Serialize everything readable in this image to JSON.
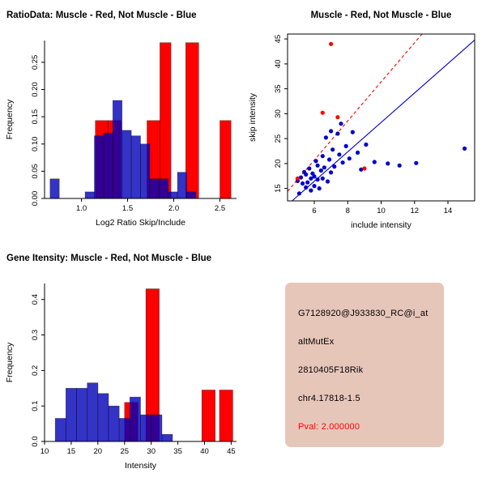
{
  "figure": {
    "bg_color": "#FFFFFF"
  },
  "chart_data": [
    {
      "type": "bar",
      "subtype": "overlaid-histogram",
      "title": "RatioData: Muscle - Red, Not Muscle - Blue",
      "xlabel": "Log2 Ratio Skip/Include",
      "ylabel": "Frequency",
      "xlim": [
        0.6,
        2.68
      ],
      "ylim": [
        0,
        0.29
      ],
      "xticks": [
        1.0,
        1.5,
        2.0,
        2.5
      ],
      "xtick_labels": [
        "1.0",
        "1.5",
        "2.0",
        "2.5"
      ],
      "yticks": [
        0,
        0.05,
        0.1,
        0.15,
        0.2,
        0.25
      ],
      "ytick_labels": [
        "0.00",
        "0.05",
        "0.10",
        "0.15",
        "0.20",
        "0.25"
      ],
      "grid": false,
      "legend": "colors explained in title",
      "series": [
        {
          "name": "Muscle",
          "color": "#FF0000",
          "opacity": 1,
          "bars": [
            [
              1.15,
              1.29,
              0.143
            ],
            [
              1.29,
              1.43,
              0.143
            ],
            [
              1.71,
              1.85,
              0.143
            ],
            [
              1.85,
              1.97,
              0.286
            ],
            [
              2.13,
              2.27,
              0.286
            ],
            [
              2.5,
              2.62,
              0.143
            ]
          ]
        },
        {
          "name": "Not Muscle",
          "color": "#0000B8",
          "opacity": 0.8,
          "bars": [
            [
              0.66,
              0.76,
              0.036
            ],
            [
              1.04,
              1.14,
              0.012
            ],
            [
              1.14,
              1.24,
              0.115
            ],
            [
              1.24,
              1.34,
              0.12
            ],
            [
              1.34,
              1.44,
              0.18
            ],
            [
              1.44,
              1.54,
              0.125
            ],
            [
              1.54,
              1.64,
              0.115
            ],
            [
              1.64,
              1.74,
              0.1
            ],
            [
              1.74,
              1.84,
              0.036
            ],
            [
              1.84,
              1.94,
              0.036
            ],
            [
              1.94,
              2.04,
              0.012
            ],
            [
              2.04,
              2.14,
              0.048
            ],
            [
              2.14,
              2.24,
              0.012
            ]
          ]
        }
      ]
    },
    {
      "type": "scatter",
      "title": "Muscle - Red, Not Muscle - Blue",
      "xlabel": "include intensity",
      "ylabel": "skip intensity",
      "xlim": [
        4.4,
        15.6
      ],
      "ylim": [
        12.5,
        46
      ],
      "xticks": [
        6,
        8,
        10,
        12,
        14
      ],
      "xtick_labels": [
        "6",
        "8",
        "10",
        "12",
        "14"
      ],
      "yticks": [
        15,
        20,
        25,
        30,
        35,
        40,
        45
      ],
      "ytick_labels": [
        "15",
        "20",
        "25",
        "30",
        "35",
        "40",
        "45"
      ],
      "frame": "box",
      "grid": false,
      "points": [
        {
          "name": "Not Muscle",
          "color": "#0000CC",
          "xy": [
            [
              5.0,
              16.5
            ],
            [
              5.1,
              14.0
            ],
            [
              5.2,
              17.2
            ],
            [
              5.3,
              16.0
            ],
            [
              5.4,
              18.3
            ],
            [
              5.5,
              15.2
            ],
            [
              5.5,
              17.8
            ],
            [
              5.6,
              16.2
            ],
            [
              5.7,
              19.0
            ],
            [
              5.8,
              14.6
            ],
            [
              5.8,
              17.0
            ],
            [
              5.9,
              18.0
            ],
            [
              6.0,
              15.5
            ],
            [
              6.0,
              17.4
            ],
            [
              6.1,
              20.5
            ],
            [
              6.2,
              16.8
            ],
            [
              6.2,
              19.6
            ],
            [
              6.3,
              15.0
            ],
            [
              6.4,
              18.6
            ],
            [
              6.5,
              21.5
            ],
            [
              6.5,
              17.0
            ],
            [
              6.6,
              19.2
            ],
            [
              6.7,
              25.2
            ],
            [
              6.8,
              16.4
            ],
            [
              6.9,
              20.8
            ],
            [
              7.0,
              18.2
            ],
            [
              7.0,
              26.5
            ],
            [
              7.1,
              22.8
            ],
            [
              7.2,
              19.4
            ],
            [
              7.4,
              26.0
            ],
            [
              7.5,
              21.8
            ],
            [
              7.6,
              28.0
            ],
            [
              7.7,
              20.2
            ],
            [
              7.9,
              23.5
            ],
            [
              8.1,
              21.0
            ],
            [
              8.3,
              26.3
            ],
            [
              8.6,
              22.2
            ],
            [
              8.8,
              18.8
            ],
            [
              9.1,
              23.8
            ],
            [
              9.6,
              20.3
            ],
            [
              10.4,
              20.0
            ],
            [
              11.1,
              19.6
            ],
            [
              12.1,
              20.1
            ],
            [
              15.0,
              23.0
            ]
          ]
        },
        {
          "name": "Muscle",
          "color": "#FF0000",
          "xy": [
            [
              5.0,
              17.0
            ],
            [
              6.5,
              30.2
            ],
            [
              7.0,
              44.0
            ],
            [
              7.4,
              29.3
            ],
            [
              9.0,
              19.0
            ]
          ]
        }
      ],
      "lines": [
        {
          "name": "muscle-fit",
          "color": "#FF0000",
          "dashed": true,
          "p1": [
            4.4,
            14.4
          ],
          "p2": [
            12.45,
            46.0
          ]
        },
        {
          "name": "not-muscle-fit",
          "color": "#0000CC",
          "dashed": false,
          "p1": [
            4.67,
            12.5
          ],
          "p2": [
            15.6,
            44.8
          ]
        }
      ]
    },
    {
      "type": "bar",
      "subtype": "overlaid-histogram",
      "title": "Gene Itensity: Muscle - Red, Not Muscle - Blue",
      "xlabel": "Intensity",
      "ylabel": "Frequency",
      "xlim": [
        10,
        46
      ],
      "ylim": [
        0,
        0.445
      ],
      "xticks": [
        10,
        15,
        20,
        25,
        30,
        35,
        40,
        45
      ],
      "xtick_labels": [
        "10",
        "15",
        "20",
        "25",
        "30",
        "35",
        "40",
        "45"
      ],
      "yticks": [
        0,
        0.1,
        0.2,
        0.3,
        0.4
      ],
      "ytick_labels": [
        "0.0",
        "0.1",
        "0.2",
        "0.3",
        "0.4"
      ],
      "grid": false,
      "series": [
        {
          "name": "Muscle",
          "color": "#FF0000",
          "opacity": 1,
          "bars": [
            [
              25.0,
              27.5,
              0.11
            ],
            [
              29.0,
              31.5,
              0.43
            ],
            [
              39.5,
              42.0,
              0.145
            ],
            [
              42.8,
              45.3,
              0.145
            ]
          ]
        },
        {
          "name": "Not Muscle",
          "color": "#0000B8",
          "opacity": 0.8,
          "bars": [
            [
              12,
              14,
              0.065
            ],
            [
              14,
              16,
              0.15
            ],
            [
              16,
              18,
              0.15
            ],
            [
              18,
              20,
              0.165
            ],
            [
              20,
              22,
              0.135
            ],
            [
              22,
              24,
              0.1
            ],
            [
              24,
              26,
              0.065
            ],
            [
              26,
              28,
              0.125
            ],
            [
              28,
              30,
              0.075
            ],
            [
              30,
              32,
              0.075
            ],
            [
              32,
              34,
              0.02
            ]
          ]
        }
      ]
    }
  ],
  "info_box": {
    "bg_color": "#E7C6BA",
    "lines": [
      {
        "text": "G7128920@J933830_RC@i_at",
        "color": "#000000"
      },
      {
        "text": "altMutEx",
        "color": "#000000"
      },
      {
        "text": "2810405F18Rik",
        "color": "#000000"
      },
      {
        "text": "chr4.17818-1.5",
        "color": "#000000"
      },
      {
        "text": "Pval: 2.000000",
        "color": "#FF0000"
      }
    ]
  }
}
